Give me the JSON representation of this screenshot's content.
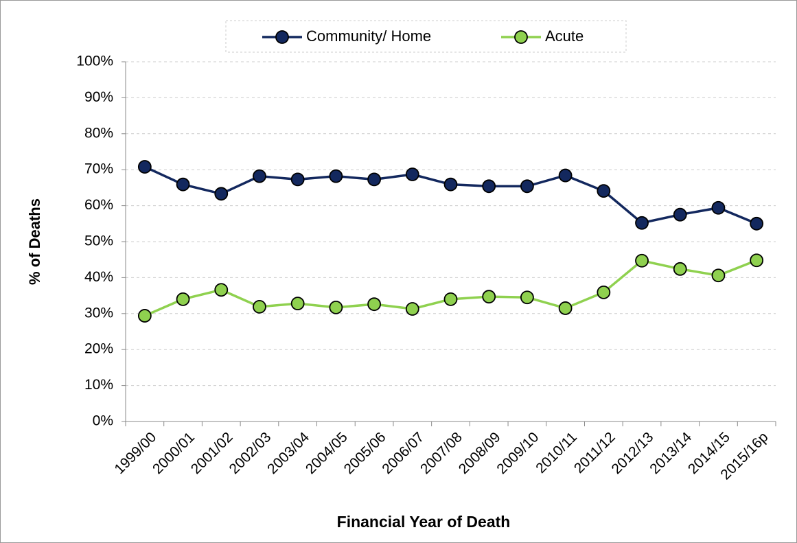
{
  "chart_data": {
    "type": "line",
    "x_label": "Financial Year of Death",
    "y_label": "% of Deaths",
    "categories": [
      "1999/00",
      "2000/01",
      "2001/02",
      "2002/03",
      "2003/04",
      "2004/05",
      "2005/06",
      "2006/07",
      "2007/08",
      "2008/09",
      "2009/10",
      "2010/11",
      "2011/12",
      "2012/13",
      "2013/14",
      "2014/15",
      "2015/16p"
    ],
    "series": [
      {
        "name": "Community/ Home",
        "color": "#13285e",
        "values": [
          70.8,
          65.9,
          63.3,
          68.2,
          67.3,
          68.2,
          67.3,
          68.7,
          65.9,
          65.4,
          65.4,
          68.4,
          64.1,
          55.2,
          57.5,
          59.4,
          55.0
        ]
      },
      {
        "name": "Acute",
        "color": "#8fd14f",
        "values": [
          29.4,
          34.0,
          36.6,
          31.9,
          32.8,
          31.7,
          32.6,
          31.3,
          34.0,
          34.7,
          34.5,
          31.5,
          35.9,
          44.7,
          42.4,
          40.6,
          44.8
        ]
      }
    ],
    "ylim": [
      0,
      100
    ],
    "yticks": [
      {
        "value": 0,
        "label": "0%"
      },
      {
        "value": 10,
        "label": "10%"
      },
      {
        "value": 20,
        "label": "20%"
      },
      {
        "value": 30,
        "label": "30%"
      },
      {
        "value": 40,
        "label": "40%"
      },
      {
        "value": 50,
        "label": "50%"
      },
      {
        "value": 60,
        "label": "60%"
      },
      {
        "value": 70,
        "label": "70%"
      },
      {
        "value": 80,
        "label": "80%"
      },
      {
        "value": 90,
        "label": "90%"
      },
      {
        "value": 100,
        "label": "100%"
      }
    ],
    "grid": true,
    "legend": "top"
  }
}
